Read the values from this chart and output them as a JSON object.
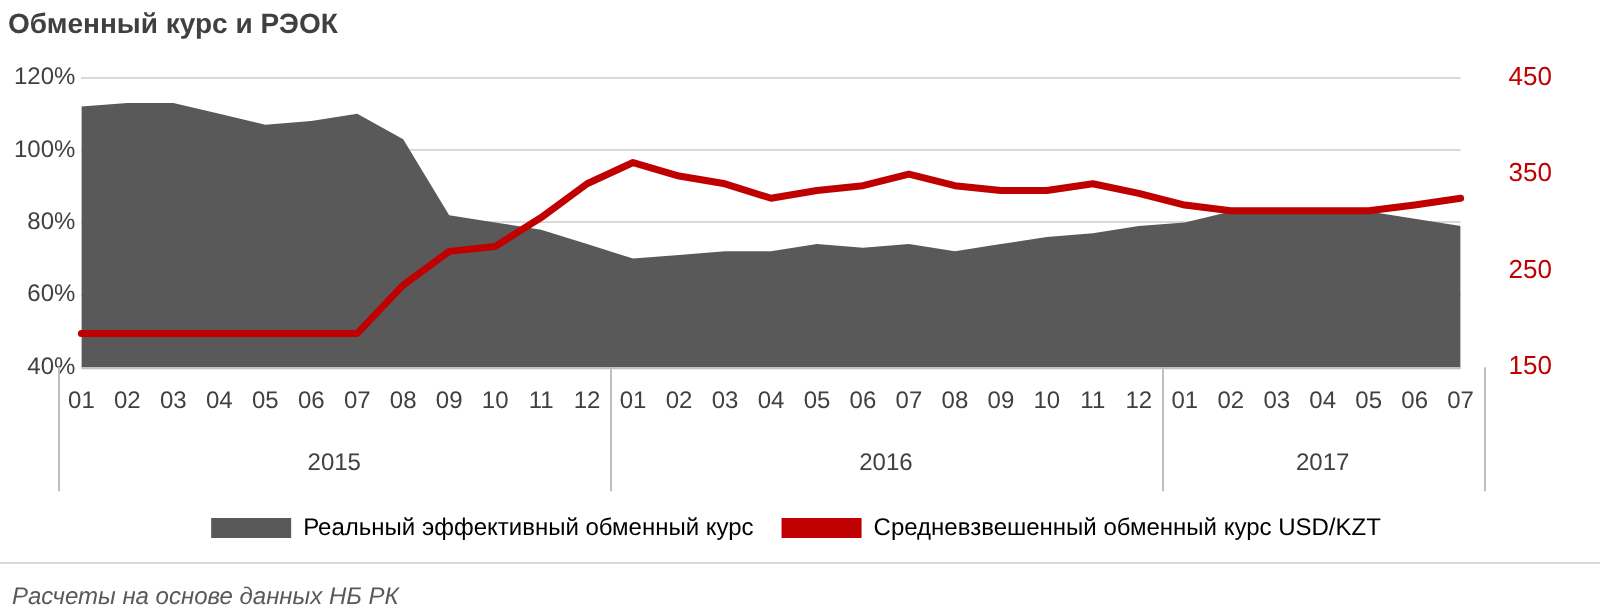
{
  "chart_data": {
    "type": "area",
    "title": "Обменный курс и РЭОК",
    "categories": [
      "01",
      "02",
      "03",
      "04",
      "05",
      "06",
      "07",
      "08",
      "09",
      "10",
      "11",
      "12",
      "01",
      "02",
      "03",
      "04",
      "05",
      "06",
      "07",
      "08",
      "09",
      "10",
      "11",
      "12",
      "01",
      "02",
      "03",
      "04",
      "05",
      "06",
      "07"
    ],
    "series": [
      {
        "name": "Реальный эффективный обменный курс",
        "type": "area",
        "color": "#595959",
        "values": [
          112,
          113,
          113,
          110,
          107,
          108,
          110,
          103,
          82,
          80,
          78,
          74,
          70,
          71,
          72,
          72,
          74,
          73,
          74,
          72,
          74,
          76,
          77,
          79,
          80,
          83,
          83,
          83,
          83,
          81,
          79
        ]
      },
      {
        "name": "Средневзвешенный обменный курс USD/KZT",
        "type": "line",
        "axis": "y2",
        "color": "#c00000",
        "values": [
          185,
          185,
          185,
          185,
          185,
          185,
          185,
          235,
          270,
          275,
          305,
          340,
          362,
          348,
          340,
          325,
          333,
          338,
          350,
          338,
          333,
          333,
          340,
          330,
          318,
          312,
          312,
          312,
          312,
          318,
          325
        ]
      }
    ],
    "ylim": [
      40,
      120
    ],
    "yticks": [
      {
        "value": 40,
        "label": "40%"
      },
      {
        "value": 60,
        "label": "60%"
      },
      {
        "value": 80,
        "label": "80%"
      },
      {
        "value": 100,
        "label": "100%"
      },
      {
        "value": 120,
        "label": "120%"
      }
    ],
    "y2lim": [
      150,
      450
    ],
    "y2ticks": [
      150,
      250,
      350,
      450
    ],
    "grid": "y",
    "legend": "bottom",
    "marker": "none",
    "line_style": "solid",
    "annotations": [
      "2015",
      "2016",
      "2017",
      "Расчеты на основе данных НБ РК"
    ]
  }
}
